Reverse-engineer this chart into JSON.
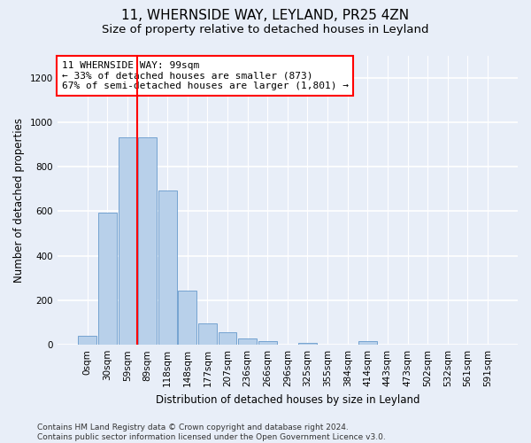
{
  "title": "11, WHERNSIDE WAY, LEYLAND, PR25 4ZN",
  "subtitle": "Size of property relative to detached houses in Leyland",
  "xlabel": "Distribution of detached houses by size in Leyland",
  "ylabel": "Number of detached properties",
  "bar_labels": [
    "0sqm",
    "30sqm",
    "59sqm",
    "89sqm",
    "118sqm",
    "148sqm",
    "177sqm",
    "207sqm",
    "236sqm",
    "266sqm",
    "296sqm",
    "325sqm",
    "355sqm",
    "384sqm",
    "414sqm",
    "443sqm",
    "473sqm",
    "502sqm",
    "532sqm",
    "561sqm",
    "591sqm"
  ],
  "bar_values": [
    40,
    595,
    930,
    930,
    695,
    243,
    95,
    55,
    30,
    18,
    0,
    10,
    0,
    0,
    15,
    0,
    0,
    0,
    0,
    0,
    0
  ],
  "bar_color": "#b8d0ea",
  "bar_edge_color": "#6699cc",
  "vline_x": 2.5,
  "vline_color": "red",
  "annotation_text": "11 WHERNSIDE WAY: 99sqm\n← 33% of detached houses are smaller (873)\n67% of semi-detached houses are larger (1,801) →",
  "annotation_box_color": "white",
  "annotation_box_edge_color": "red",
  "ylim": [
    0,
    1300
  ],
  "yticks": [
    0,
    200,
    400,
    600,
    800,
    1000,
    1200
  ],
  "footer": "Contains HM Land Registry data © Crown copyright and database right 2024.\nContains public sector information licensed under the Open Government Licence v3.0.",
  "bg_color": "#e8eef8",
  "grid_color": "white",
  "title_fontsize": 11,
  "subtitle_fontsize": 9.5,
  "axis_label_fontsize": 8.5,
  "tick_fontsize": 7.5,
  "footer_fontsize": 6.5,
  "annotation_fontsize": 8
}
